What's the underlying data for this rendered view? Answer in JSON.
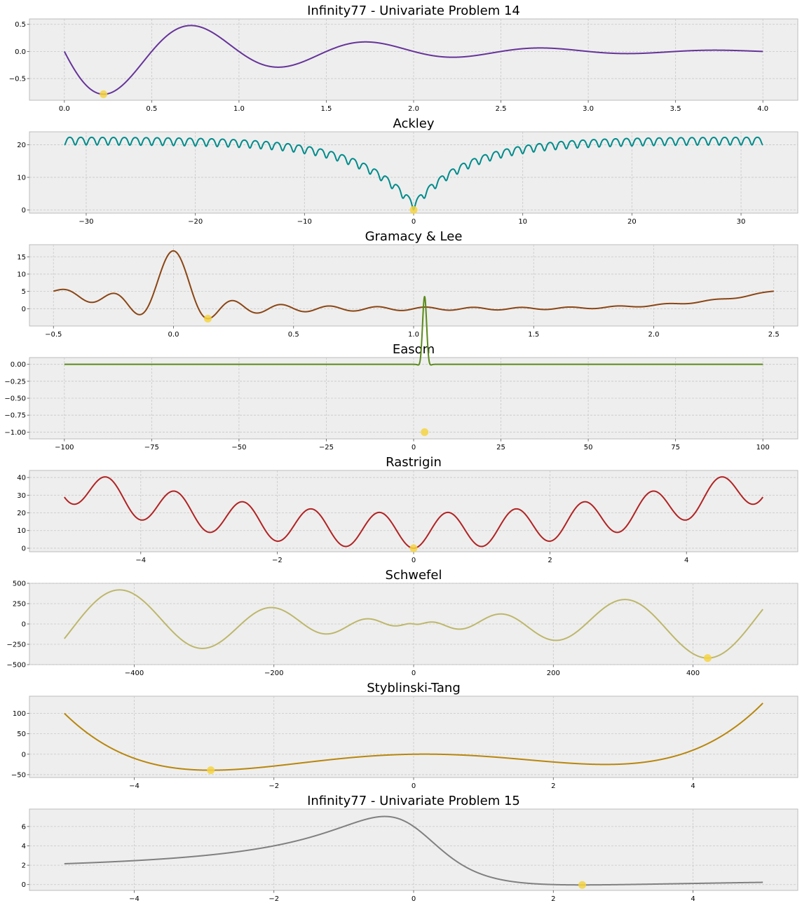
{
  "chart_data": [
    {
      "type": "line",
      "title": "Infinity77 - Univariate Problem 14",
      "func": "p14",
      "xlim": [
        -0.2,
        4.2
      ],
      "ylim": [
        -0.9,
        0.6
      ],
      "xticks": [
        0.0,
        0.5,
        1.0,
        1.5,
        2.0,
        2.5,
        3.0,
        3.5,
        4.0
      ],
      "xtick_labels": [
        "0.0",
        "0.5",
        "1.0",
        "1.5",
        "2.0",
        "2.5",
        "3.0",
        "3.5",
        "4.0"
      ],
      "yticks": [
        0.5,
        0.0,
        -0.5
      ],
      "ytick_labels": [
        "0.5",
        "0.0",
        "−0.5"
      ],
      "domain": [
        0.0,
        4.0
      ],
      "line_color": "#663399",
      "minimum": {
        "x": 0.224,
        "y": -0.788
      },
      "grid": true
    },
    {
      "type": "line",
      "title": "Ackley",
      "func": "ackley",
      "xlim": [
        -35.2,
        35.2
      ],
      "ylim": [
        -1.0,
        24.0
      ],
      "xticks": [
        -30,
        -20,
        -10,
        0,
        10,
        20,
        30
      ],
      "xtick_labels": [
        "−30",
        "−20",
        "−10",
        "0",
        "10",
        "20",
        "30"
      ],
      "yticks": [
        20,
        10,
        0
      ],
      "ytick_labels": [
        "20",
        "10",
        "0"
      ],
      "domain": [
        -32.0,
        32.0
      ],
      "line_color": "#008b8b",
      "minimum": {
        "x": 0.0,
        "y": 0.0
      },
      "grid": true
    },
    {
      "type": "line",
      "title": "Gramacy & Lee",
      "func": "gramacy",
      "xlim": [
        -0.6,
        2.6
      ],
      "ylim": [
        -5.0,
        18.5
      ],
      "xticks": [
        -0.5,
        0.0,
        0.5,
        1.0,
        1.5,
        2.0,
        2.5
      ],
      "xtick_labels": [
        "−0.5",
        "0.0",
        "0.5",
        "1.0",
        "1.5",
        "2.0",
        "2.5"
      ],
      "yticks": [
        15,
        10,
        5,
        0
      ],
      "ytick_labels": [
        "15",
        "10",
        "5",
        "0"
      ],
      "domain": [
        -0.5,
        2.5
      ],
      "line_color": "#8b4513",
      "minimum": {
        "x": 0.143,
        "y": -2.874
      },
      "grid": true
    },
    {
      "type": "line",
      "title": "Easom",
      "func": "easom",
      "xlim": [
        -110,
        110
      ],
      "ylim": [
        -1.1,
        0.1
      ],
      "xticks": [
        -100,
        -75,
        -50,
        -25,
        0,
        25,
        50,
        75,
        100
      ],
      "xtick_labels": [
        "−100",
        "−75",
        "−50",
        "−25",
        "0",
        "25",
        "50",
        "75",
        "100"
      ],
      "yticks": [
        0.0,
        -0.25,
        -0.5,
        -0.75,
        -1.0
      ],
      "ytick_labels": [
        "0.00",
        "−0.25",
        "−0.50",
        "−0.75",
        "−1.00"
      ],
      "domain": [
        -100,
        100
      ],
      "line_color": "#5a8a1a",
      "minimum": {
        "x": 3.1416,
        "y": -1.0
      },
      "grid": true
    },
    {
      "type": "line",
      "title": "Rastrigin",
      "func": "rastrigin",
      "xlim": [
        -5.632,
        5.632
      ],
      "ylim": [
        -2.0,
        44.0
      ],
      "xticks": [
        -4,
        -2,
        0,
        2,
        4
      ],
      "xtick_labels": [
        "−4",
        "−2",
        "0",
        "2",
        "4"
      ],
      "yticks": [
        40,
        30,
        20,
        10,
        0
      ],
      "ytick_labels": [
        "40",
        "30",
        "20",
        "10",
        "0"
      ],
      "domain": [
        -5.12,
        5.12
      ],
      "line_color": "#b22222",
      "minimum": {
        "x": 0.0,
        "y": 0.0
      },
      "grid": true
    },
    {
      "type": "line",
      "title": "Schwefel",
      "func": "schwefel",
      "xlim": [
        -550,
        550
      ],
      "ylim": [
        -500,
        500
      ],
      "xticks": [
        -400,
        -200,
        0,
        200,
        400
      ],
      "xtick_labels": [
        "−400",
        "−200",
        "0",
        "200",
        "400"
      ],
      "yticks": [
        500,
        250,
        0,
        -250,
        -500
      ],
      "ytick_labels": [
        "500",
        "250",
        "0",
        "−250",
        "−500"
      ],
      "domain": [
        -500,
        500
      ],
      "line_color": "#bdb76b",
      "minimum": {
        "x": 420.97,
        "y": -418.98
      },
      "grid": true
    },
    {
      "type": "line",
      "title": "Styblinski-Tang",
      "func": "styblinski",
      "xlim": [
        -5.5,
        5.5
      ],
      "ylim": [
        -57,
        142
      ],
      "xticks": [
        -4,
        -2,
        0,
        2,
        4
      ],
      "xtick_labels": [
        "−4",
        "−2",
        "0",
        "2",
        "4"
      ],
      "yticks": [
        100,
        50,
        0,
        -50
      ],
      "ytick_labels": [
        "100",
        "50",
        "0",
        "−50"
      ],
      "domain": [
        -5.0,
        5.0
      ],
      "line_color": "#b8860b",
      "minimum": {
        "x": -2.9035,
        "y": -39.166
      },
      "grid": true
    },
    {
      "type": "line",
      "title": "Infinity77 - Univariate Problem 15",
      "func": "p15",
      "xlim": [
        -5.5,
        5.5
      ],
      "ylim": [
        -0.6,
        7.8
      ],
      "xticks": [
        -4,
        -2,
        0,
        2,
        4
      ],
      "xtick_labels": [
        "−4",
        "−2",
        "0",
        "2",
        "4"
      ],
      "yticks": [
        6,
        4,
        2,
        0
      ],
      "ytick_labels": [
        "6",
        "4",
        "2",
        "0"
      ],
      "domain": [
        -5.0,
        5.0
      ],
      "line_color": "#808080",
      "minimum": {
        "x": 2.414,
        "y": -0.0355
      },
      "grid": true
    }
  ],
  "style": {
    "axes_facecolor": "#eeeeee",
    "axes_edgecolor": "#bcbcbc",
    "grid_color": "#c8c8c8",
    "marker_color": "#f5d442"
  }
}
